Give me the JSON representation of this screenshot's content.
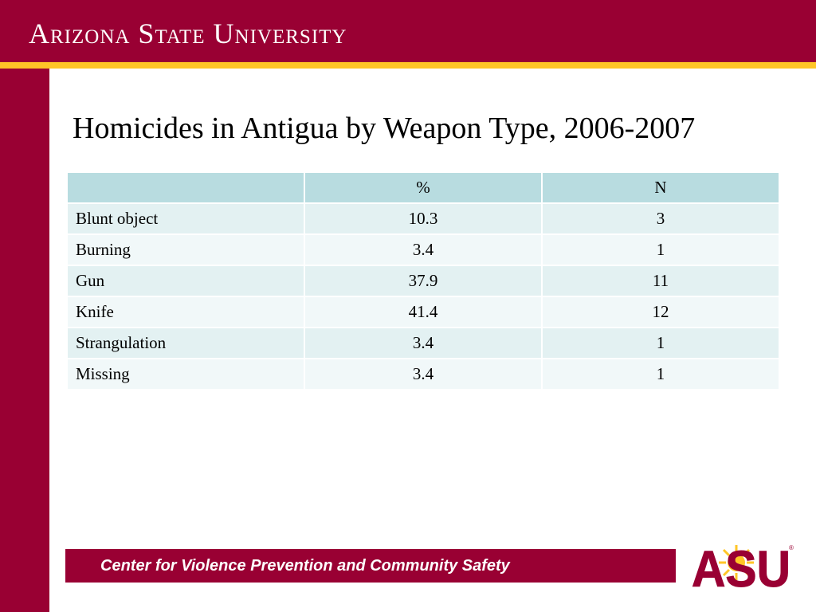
{
  "header": {
    "wordmark": "Arizona State University"
  },
  "slide": {
    "title": "Homicides in Antigua by Weapon Type, 2006-2007"
  },
  "table": {
    "headers": [
      "",
      "%",
      "N"
    ],
    "rows": [
      [
        "Blunt object",
        "10.3",
        "3"
      ],
      [
        "Burning",
        "3.4",
        "1"
      ],
      [
        "Gun",
        "37.9",
        "11"
      ],
      [
        "Knife",
        "41.4",
        "12"
      ],
      [
        "Strangulation",
        "3.4",
        "1"
      ],
      [
        "Missing",
        "3.4",
        "1"
      ]
    ]
  },
  "footer": {
    "center_name": "Center for Violence Prevention and Community Safety",
    "logo_text": "ASU"
  },
  "colors": {
    "maroon": "#990033",
    "gold": "#FFC627",
    "table_header": "#B8DCE0",
    "table_row_dark": "#E3F1F2",
    "table_row_light": "#F1F8F9"
  }
}
